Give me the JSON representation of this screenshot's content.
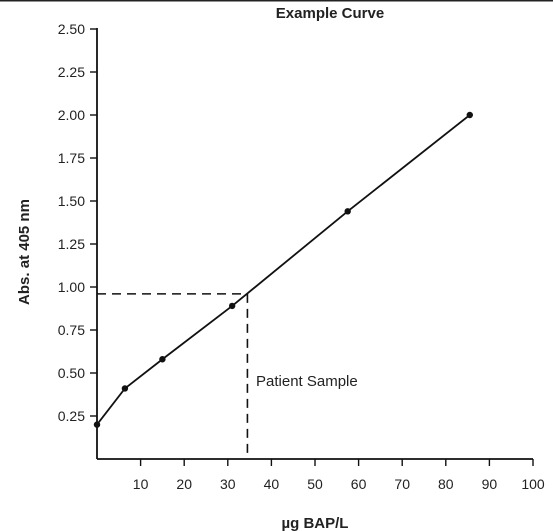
{
  "chart_data": {
    "type": "line",
    "title": "Example Curve",
    "xlabel": "µg BAP/L",
    "ylabel": "Abs. at 405 nm",
    "xlim": [
      0,
      100
    ],
    "ylim": [
      0,
      2.5
    ],
    "x_ticks": [
      10,
      20,
      30,
      40,
      50,
      60,
      70,
      80,
      90,
      100
    ],
    "y_ticks": [
      "0.25",
      "0.50",
      "0.75",
      "1.00",
      "1.25",
      "1.50",
      "1.75",
      "2.00",
      "2.25",
      "2.50"
    ],
    "grid": false,
    "series": [
      {
        "x": [
          0,
          6.4,
          15,
          31,
          57.5,
          85.5
        ],
        "y": [
          0.2,
          0.41,
          0.58,
          0.89,
          1.44,
          2.0
        ],
        "color": "#111111"
      }
    ],
    "annotation": {
      "label": "Patient Sample",
      "x": 34.5,
      "y": 0.96
    }
  }
}
